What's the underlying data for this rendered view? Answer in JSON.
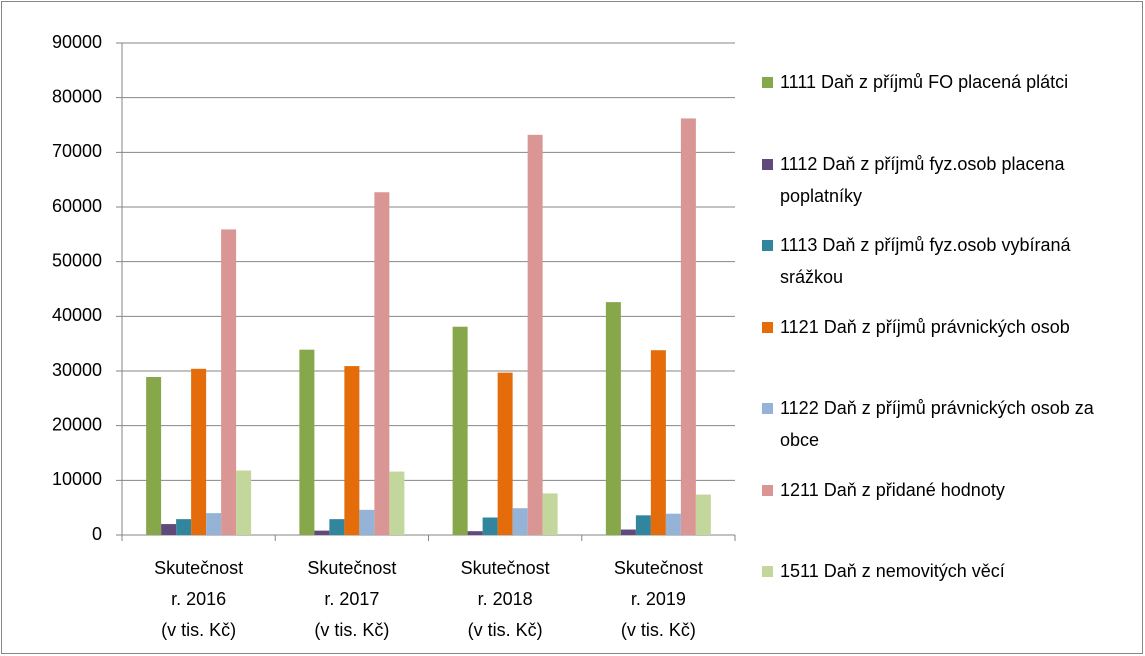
{
  "chart_data": {
    "type": "bar",
    "categories": [
      [
        "Skutečnost",
        "r. 2016",
        "(v tis. Kč)"
      ],
      [
        "Skutečnost",
        "r. 2017",
        "(v tis. Kč)"
      ],
      [
        "Skutečnost",
        "r. 2018",
        "(v tis. Kč)"
      ],
      [
        "Skutečnost",
        "r. 2019",
        "(v tis. Kč)"
      ]
    ],
    "series": [
      {
        "name": "1111 Daň z příjmů FO placená plátci",
        "color": "#86a84a",
        "values": [
          28900,
          33900,
          38100,
          42600
        ]
      },
      {
        "name": "1112 Daň z příjmů fyz.osob placena poplatníky",
        "color": "#604a7b",
        "values": [
          2000,
          800,
          700,
          1000
        ]
      },
      {
        "name": "1113 Daň z příjmů fyz.osob vybíraná srážkou",
        "color": "#31859c",
        "values": [
          2900,
          2900,
          3200,
          3600
        ]
      },
      {
        "name": "1121 Daň z příjmů právnických osob",
        "color": "#e46c0a",
        "values": [
          30400,
          30900,
          29700,
          33800
        ]
      },
      {
        "name": "1122 Daň z příjmů právnických osob za obce",
        "color": "#95b3d7",
        "values": [
          4000,
          4600,
          4900,
          3900
        ]
      },
      {
        "name": "1211 Daň z přidané hodnoty",
        "color": "#d99694",
        "values": [
          55900,
          62700,
          73200,
          76200
        ]
      },
      {
        "name": "1511 Daň z nemovitých věcí",
        "color": "#c3d69b",
        "values": [
          11800,
          11600,
          7600,
          7400
        ]
      }
    ],
    "ylim": [
      0,
      90000
    ],
    "yticks": [
      0,
      10000,
      20000,
      30000,
      40000,
      50000,
      60000,
      70000,
      80000,
      90000
    ],
    "grid": true,
    "legend": "right"
  }
}
